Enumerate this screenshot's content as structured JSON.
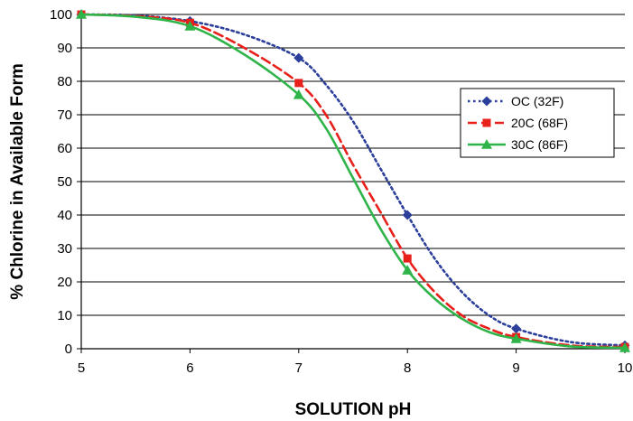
{
  "chart_data": {
    "type": "line",
    "title": "",
    "xlabel": "SOLUTION pH",
    "ylabel": "% Chlorine in Available Form",
    "xlim": [
      5,
      10
    ],
    "ylim": [
      0,
      100
    ],
    "x_ticks": [
      5,
      6,
      7,
      8,
      9,
      10
    ],
    "y_ticks": [
      0,
      10,
      20,
      30,
      40,
      50,
      60,
      70,
      80,
      90,
      100
    ],
    "grid": "horizontal",
    "legend_position": "right",
    "series": [
      {
        "name": "OC (32F)",
        "color": "#2b3f9b",
        "line_style": "dotted",
        "marker": "diamond",
        "markers": [
          [
            5,
            100
          ],
          [
            6,
            98
          ],
          [
            7,
            87
          ],
          [
            8,
            40
          ],
          [
            9,
            6
          ],
          [
            10,
            1
          ]
        ],
        "curve": [
          [
            5,
            100
          ],
          [
            5.5,
            99.7
          ],
          [
            6,
            98
          ],
          [
            6.5,
            94
          ],
          [
            7,
            87
          ],
          [
            7.25,
            79
          ],
          [
            7.5,
            68
          ],
          [
            7.75,
            54
          ],
          [
            8,
            40
          ],
          [
            8.25,
            27
          ],
          [
            8.5,
            17
          ],
          [
            8.75,
            10
          ],
          [
            9,
            6
          ],
          [
            9.5,
            2
          ],
          [
            10,
            1
          ]
        ]
      },
      {
        "name": "20C (68F)",
        "color": "#e8201c",
        "line_style": "dashed",
        "marker": "square",
        "markers": [
          [
            5,
            100
          ],
          [
            6,
            97.5
          ],
          [
            7,
            79.5
          ],
          [
            8,
            27
          ],
          [
            9,
            3.5
          ],
          [
            10,
            0.5
          ]
        ],
        "curve": [
          [
            5,
            100
          ],
          [
            5.5,
            99.5
          ],
          [
            6,
            97.5
          ],
          [
            6.5,
            90
          ],
          [
            7,
            79.5
          ],
          [
            7.25,
            70
          ],
          [
            7.5,
            55
          ],
          [
            7.75,
            41
          ],
          [
            8,
            27
          ],
          [
            8.25,
            17
          ],
          [
            8.5,
            10
          ],
          [
            8.75,
            6
          ],
          [
            9,
            3.5
          ],
          [
            9.5,
            1
          ],
          [
            10,
            0.5
          ]
        ]
      },
      {
        "name": "30C (86F)",
        "color": "#2fb44a",
        "line_style": "solid",
        "marker": "triangle",
        "markers": [
          [
            5,
            100
          ],
          [
            6,
            96.5
          ],
          [
            7,
            76
          ],
          [
            8,
            23.5
          ],
          [
            9,
            3
          ],
          [
            10,
            0.3
          ]
        ],
        "curve": [
          [
            5,
            100
          ],
          [
            5.5,
            99.3
          ],
          [
            6,
            96.5
          ],
          [
            6.5,
            88
          ],
          [
            7,
            76
          ],
          [
            7.25,
            66
          ],
          [
            7.5,
            51
          ],
          [
            7.75,
            36
          ],
          [
            8,
            23.5
          ],
          [
            8.25,
            15
          ],
          [
            8.5,
            9
          ],
          [
            8.75,
            5
          ],
          [
            9,
            3
          ],
          [
            9.5,
            0.7
          ],
          [
            10,
            0.3
          ]
        ]
      }
    ]
  }
}
